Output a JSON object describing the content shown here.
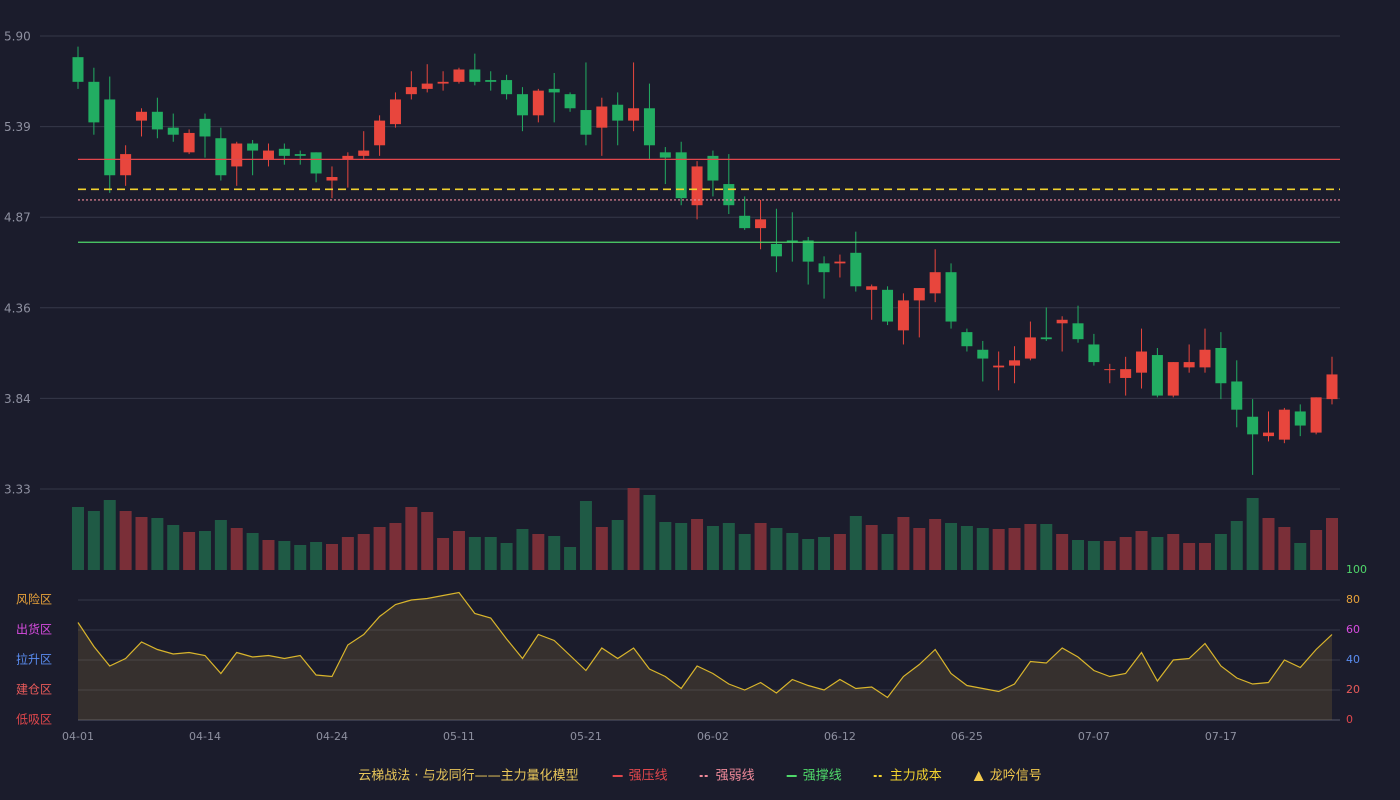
{
  "chart_data": {
    "type": "candlestick",
    "categories": [
      "04-01",
      null,
      null,
      null,
      null,
      null,
      null,
      null,
      "04-14",
      null,
      null,
      null,
      null,
      null,
      null,
      null,
      "04-24",
      null,
      null,
      null,
      null,
      null,
      null,
      null,
      "05-11",
      null,
      null,
      null,
      null,
      null,
      null,
      null,
      "05-21",
      null,
      null,
      null,
      null,
      null,
      null,
      null,
      "06-02",
      null,
      null,
      null,
      null,
      null,
      null,
      null,
      "06-12",
      null,
      null,
      null,
      null,
      null,
      null,
      null,
      "06-25",
      null,
      null,
      null,
      null,
      null,
      null,
      null,
      "07-07",
      null,
      null,
      null,
      null,
      null,
      null,
      null,
      "07-17",
      null,
      null,
      null,
      null,
      null,
      null,
      null
    ],
    "open": [
      5.78,
      5.64,
      5.54,
      5.11,
      5.42,
      5.47,
      5.38,
      5.24,
      5.43,
      5.32,
      5.16,
      5.29,
      5.2,
      5.26,
      5.23,
      5.24,
      5.08,
      5.2,
      5.22,
      5.28,
      5.4,
      5.57,
      5.6,
      5.63,
      5.64,
      5.71,
      5.65,
      5.65,
      5.57,
      5.45,
      5.6,
      5.57,
      5.48,
      5.38,
      5.51,
      5.42,
      5.49,
      5.24,
      5.24,
      4.94,
      5.22,
      5.06,
      4.88,
      4.81,
      4.72,
      4.74,
      4.74,
      4.61,
      4.61,
      4.67,
      4.46,
      4.46,
      4.23,
      4.4,
      4.44,
      4.56,
      4.22,
      4.12,
      4.02,
      4.03,
      4.07,
      4.19,
      4.27,
      4.27,
      4.15,
      4.01,
      3.96,
      3.99,
      4.09,
      3.86,
      4.02,
      4.02,
      4.13,
      3.94,
      3.74,
      3.63,
      3.61,
      3.77,
      3.65,
      3.84
    ],
    "high": [
      5.84,
      5.72,
      5.67,
      5.28,
      5.49,
      5.55,
      5.46,
      5.37,
      5.46,
      5.38,
      5.3,
      5.31,
      5.29,
      5.29,
      5.25,
      5.24,
      5.16,
      5.24,
      5.36,
      5.45,
      5.58,
      5.7,
      5.74,
      5.7,
      5.72,
      5.8,
      5.7,
      5.68,
      5.61,
      5.6,
      5.69,
      5.58,
      5.75,
      5.55,
      5.58,
      5.75,
      5.63,
      5.27,
      5.3,
      5.19,
      5.25,
      5.23,
      4.99,
      4.97,
      4.92,
      4.9,
      4.76,
      4.65,
      4.66,
      4.79,
      4.49,
      4.48,
      4.44,
      4.47,
      4.69,
      4.61,
      4.24,
      4.17,
      4.11,
      4.14,
      4.28,
      4.36,
      4.31,
      4.37,
      4.21,
      4.04,
      4.08,
      4.24,
      4.13,
      4.05,
      4.15,
      4.24,
      4.22,
      4.06,
      3.84,
      3.77,
      3.79,
      3.81,
      3.85,
      4.08
    ],
    "low": [
      5.6,
      5.34,
      5.01,
      5.05,
      5.33,
      5.32,
      5.3,
      5.23,
      5.21,
      5.08,
      5.05,
      5.11,
      5.16,
      5.17,
      5.17,
      5.07,
      4.98,
      5.04,
      5.2,
      5.22,
      5.38,
      5.54,
      5.58,
      5.59,
      5.63,
      5.62,
      5.59,
      5.54,
      5.36,
      5.41,
      5.41,
      5.47,
      5.28,
      5.22,
      5.28,
      5.36,
      5.2,
      5.06,
      4.94,
      4.86,
      4.99,
      4.89,
      4.8,
      4.69,
      4.56,
      4.62,
      4.49,
      4.41,
      4.53,
      4.45,
      4.29,
      4.26,
      4.15,
      4.19,
      4.39,
      4.24,
      4.11,
      3.94,
      3.89,
      3.93,
      4.06,
      4.17,
      4.11,
      4.16,
      4.03,
      3.93,
      3.86,
      3.9,
      3.85,
      3.85,
      3.99,
      3.99,
      3.84,
      3.68,
      3.41,
      3.6,
      3.59,
      3.63,
      3.64,
      3.81
    ],
    "close": [
      5.64,
      5.41,
      5.11,
      5.23,
      5.47,
      5.37,
      5.34,
      5.35,
      5.33,
      5.11,
      5.29,
      5.25,
      5.25,
      5.22,
      5.22,
      5.12,
      5.1,
      5.22,
      5.25,
      5.42,
      5.54,
      5.61,
      5.63,
      5.64,
      5.71,
      5.64,
      5.64,
      5.57,
      5.45,
      5.59,
      5.58,
      5.49,
      5.34,
      5.5,
      5.42,
      5.49,
      5.28,
      5.21,
      4.98,
      5.16,
      5.08,
      4.94,
      4.81,
      4.86,
      4.65,
      4.73,
      4.62,
      4.56,
      4.62,
      4.48,
      4.48,
      4.28,
      4.4,
      4.47,
      4.56,
      4.28,
      4.14,
      4.07,
      4.03,
      4.06,
      4.19,
      4.18,
      4.29,
      4.18,
      4.05,
      4.01,
      4.01,
      4.11,
      3.86,
      4.05,
      4.05,
      4.12,
      3.93,
      3.78,
      3.64,
      3.65,
      3.78,
      3.69,
      3.85,
      3.98
    ],
    "up_color": "#e8463d",
    "down_color": "#22ad62",
    "ylim": [
      3.33,
      5.9
    ],
    "yticks": [
      {
        "value": 5.9,
        "label": "5.90"
      },
      {
        "value": 5.386,
        "label": "5.39"
      },
      {
        "value": 4.872,
        "label": "4.87"
      },
      {
        "value": 4.358,
        "label": "4.36"
      },
      {
        "value": 3.844,
        "label": "3.84"
      },
      {
        "value": 3.33,
        "label": "3.33"
      }
    ],
    "levels": [
      {
        "name": "强压线",
        "value": 5.2,
        "color": "#e0474c",
        "style": "solid"
      },
      {
        "name": "强弱线",
        "value": 4.97,
        "color": "#f08a9a",
        "style": "dotted"
      },
      {
        "name": "强撑线",
        "value": 4.73,
        "color": "#4fd86a",
        "style": "solid"
      },
      {
        "name": "主力成本",
        "value": 5.03,
        "color": "#f2d22e",
        "style": "dashed"
      }
    ],
    "signal": {
      "name": "龙吟信号",
      "color": "#f2c94c",
      "marker": "triangle"
    },
    "legend_title": "云梯战法 · 与龙同行——主力量化模型",
    "legend_title_color": "#e8c65a",
    "volume": {
      "type": "bar",
      "up_color": "#7a2f38",
      "down_color": "#1f5a45",
      "values": [
        63,
        59,
        70,
        59,
        53,
        52,
        45,
        38,
        39,
        50,
        42,
        37,
        30,
        29,
        25,
        28,
        26,
        33,
        36,
        43,
        47,
        63,
        58,
        32,
        39,
        33,
        33,
        27,
        41,
        36,
        34,
        23,
        69,
        43,
        50,
        82,
        75,
        48,
        47,
        51,
        44,
        47,
        36,
        47,
        42,
        37,
        31,
        33,
        36,
        54,
        45,
        36,
        53,
        42,
        51,
        47,
        44,
        42,
        41,
        42,
        46,
        46,
        36,
        30,
        29,
        29,
        33,
        39,
        33,
        36,
        27,
        27,
        36,
        49,
        72,
        52,
        43,
        27,
        40,
        52
      ]
    },
    "indicator": {
      "type": "line",
      "color": "#d9b52c",
      "fill": "rgba(150,125,55,0.22)",
      "values": [
        65,
        49,
        36,
        41,
        52,
        47,
        44,
        45,
        43,
        31,
        45,
        42,
        43,
        41,
        43,
        30,
        29,
        50,
        57,
        69,
        77,
        80,
        81,
        83,
        85,
        71,
        68,
        54,
        41,
        57,
        53,
        43,
        33,
        48,
        41,
        48,
        34,
        29,
        21,
        36,
        31,
        24,
        20,
        25,
        18,
        27,
        23,
        20,
        27,
        21,
        22,
        15,
        29,
        37,
        47,
        31,
        23,
        21,
        19,
        24,
        39,
        38,
        48,
        42,
        33,
        29,
        31,
        45,
        26,
        40,
        41,
        51,
        36,
        28,
        24,
        25,
        40,
        35,
        47,
        57
      ],
      "ylim": [
        0,
        100
      ],
      "yticks": [
        0,
        20,
        40,
        60,
        80,
        100
      ],
      "ytick_colors": [
        "#e0474c",
        "#e85a5a",
        "#5a8cf0",
        "#d84ce0",
        "#e8a23a",
        "#4fd86a"
      ],
      "zones": [
        {
          "label": "风险区",
          "value": 80,
          "color": "#e8a23a"
        },
        {
          "label": "出货区",
          "value": 60,
          "color": "#d84ce0"
        },
        {
          "label": "拉升区",
          "value": 40,
          "color": "#5a8cf0"
        },
        {
          "label": "建仓区",
          "value": 20,
          "color": "#e85a5a"
        },
        {
          "label": "低吸区",
          "value": 0,
          "color": "#e0474c"
        }
      ]
    }
  }
}
